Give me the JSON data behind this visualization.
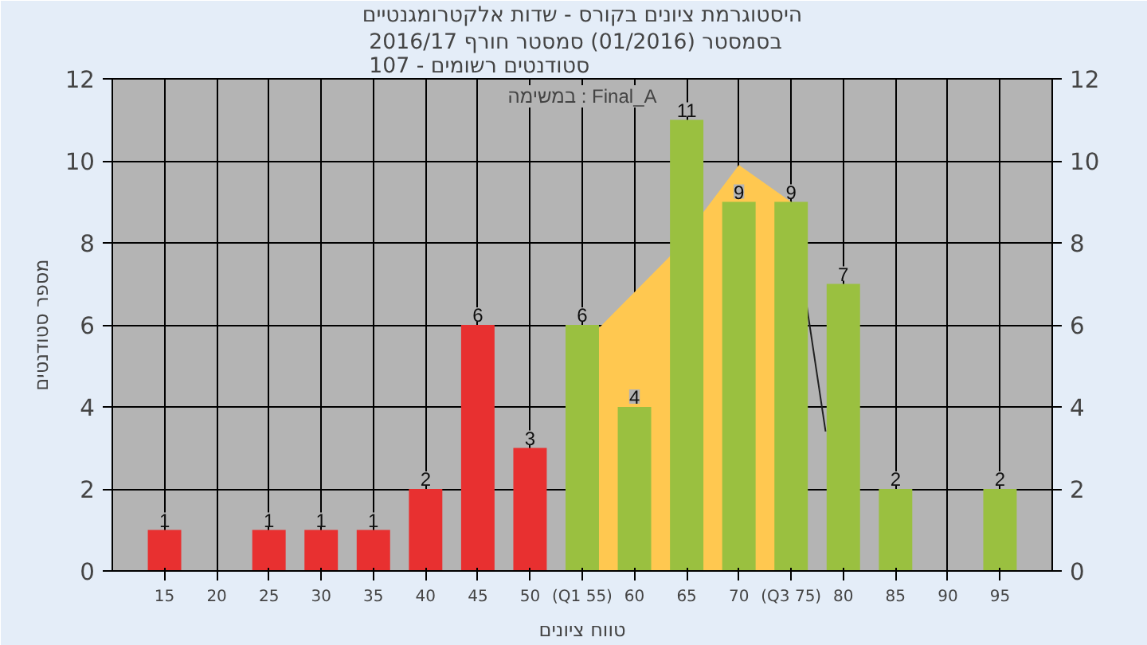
{
  "chart_data": {
    "type": "bar",
    "title": "היסטוגרמת ציונים בקורס - שדות אלקטרומגנטיים",
    "subtitle": "בסמסטר  (01/2016)  סמסטר חורף 2016/17\nסטודנטים רשומים - 107",
    "xlabel": "טווח ציונים",
    "ylabel": "מספר סטודנטים",
    "annotations": [
      "במשימה : Final_A"
    ],
    "series": [
      {
        "type": "area",
        "color": "#ffc850",
        "x": [
          56.5,
          63.5,
          70,
          75
        ],
        "values": [
          5.9,
          7.7,
          9.9,
          9.0
        ]
      },
      {
        "type": "line",
        "color": "#202020",
        "x": [
          75,
          78.3
        ],
        "values": [
          9.0,
          3.4
        ]
      },
      {
        "value_labels": [
          "1",
          "1",
          "1",
          "1",
          "2",
          "6",
          "3",
          "6",
          "4",
          "11",
          "9",
          "9",
          "7",
          "2",
          "2"
        ],
        "x": [
          15,
          25,
          30,
          35,
          40,
          45,
          50,
          55,
          60,
          65,
          70,
          75,
          80,
          85,
          95
        ],
        "values": [
          1,
          1,
          1,
          1,
          2,
          6,
          3,
          6,
          4,
          11,
          9,
          9,
          7,
          2,
          2
        ],
        "colors": [
          "#e83030",
          "#e83030",
          "#e83030",
          "#e83030",
          "#e83030",
          "#e83030",
          "#e83030",
          "#9ac040",
          "#9ac040",
          "#9ac040",
          "#9ac040",
          "#9ac040",
          "#9ac040",
          "#9ac040",
          "#9ac040"
        ]
      }
    ],
    "xlim": [
      10,
      100
    ],
    "xticks": [
      15,
      20,
      25,
      30,
      35,
      40,
      45,
      50,
      {
        "value": 55,
        "label": "(Q1 55)"
      },
      60,
      65,
      70,
      {
        "value": 75,
        "label": "(Q3 75)"
      },
      80,
      85,
      90,
      95
    ],
    "ylim": [
      0,
      12
    ],
    "yticks": [
      0,
      2,
      4,
      6,
      8,
      10,
      12
    ],
    "y2lim": [
      0,
      12
    ],
    "y2ticks": [
      0,
      2,
      4,
      6,
      8,
      10,
      12
    ],
    "grid": true
  }
}
